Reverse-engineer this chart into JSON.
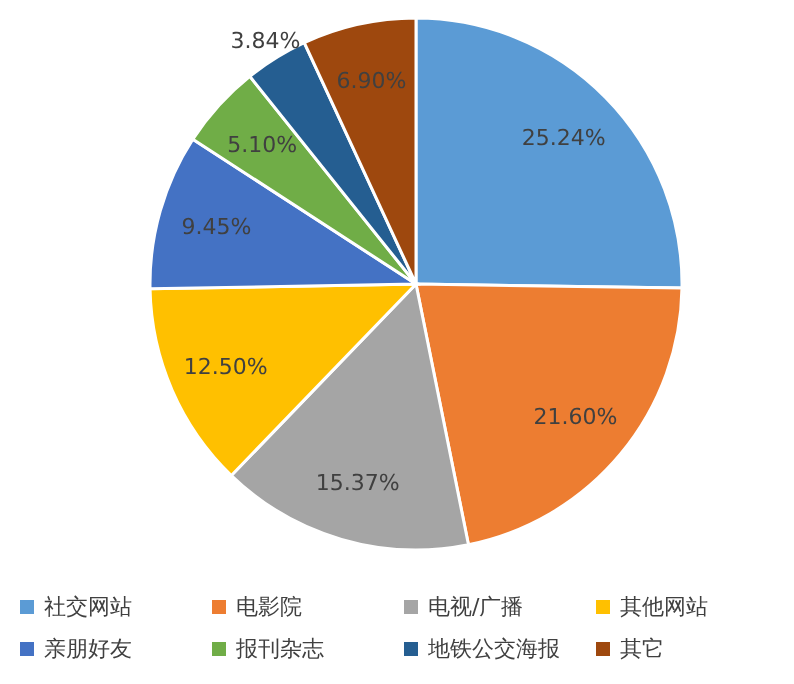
{
  "chart_data": {
    "type": "pie",
    "categories": [
      "社交网站",
      "电影院",
      "电视/广播",
      "其他网站",
      "亲朋好友",
      "报刊杂志",
      "地铁公交海报",
      "其它"
    ],
    "values": [
      25.24,
      21.6,
      15.37,
      12.5,
      9.45,
      5.1,
      3.84,
      6.9
    ],
    "colors": [
      "#5b9bd5",
      "#ed7d31",
      "#a5a5a5",
      "#ffc000",
      "#4472c4",
      "#70ad47",
      "#255e91",
      "#9e480e"
    ],
    "value_labels": [
      "25.24%",
      "21.60%",
      "15.37%",
      "12.50%",
      "9.45%",
      "5.10%",
      "3.84%",
      "6.90%"
    ],
    "legend": "bottom"
  }
}
